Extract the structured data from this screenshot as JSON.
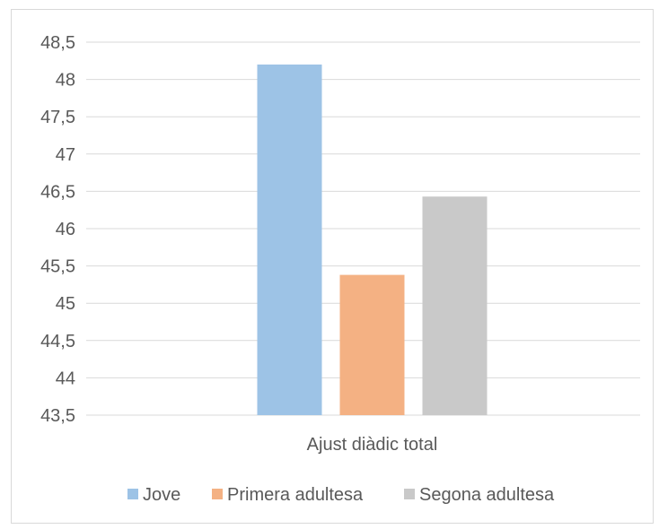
{
  "chart_data": {
    "type": "bar",
    "categories": [
      "Ajust diàdic total"
    ],
    "series": [
      {
        "name": "Jove",
        "values": [
          48.2
        ],
        "color": "#9dc3e6"
      },
      {
        "name": "Primera adultesa",
        "values": [
          45.38
        ],
        "color": "#f4b183"
      },
      {
        "name": "Segona adultesa",
        "values": [
          46.43
        ],
        "color": "#c9c9c9"
      }
    ],
    "title": "",
    "xlabel": "",
    "ylabel": "",
    "ylim": [
      43.5,
      48.5
    ],
    "yticks": [
      "43,5",
      "44",
      "44,5",
      "45",
      "45,5",
      "46",
      "46,5",
      "47",
      "47,5",
      "48",
      "48,5"
    ],
    "grid": true,
    "legend_position": "bottom"
  }
}
